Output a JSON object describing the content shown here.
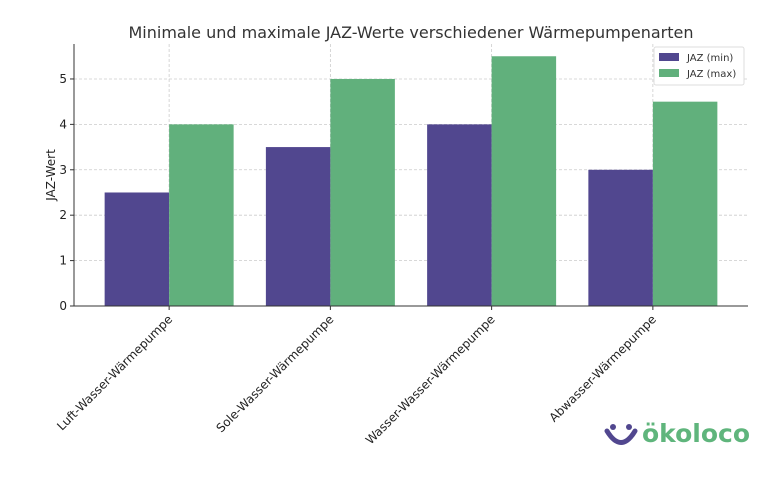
{
  "chart_data": {
    "type": "bar",
    "title": "Minimale und maximale JAZ-Werte verschiedener Wärmepumpenarten",
    "xlabel": "",
    "ylabel": "JAZ-Wert",
    "categories": [
      "Luft-Wasser-Wärmepumpe",
      "Sole-Wasser-Wärmepumpe",
      "Wasser-Wasser-Wärmepumpe",
      "Abwasser-Wärmepumpe"
    ],
    "series": [
      {
        "name": "JAZ (min)",
        "values": [
          2.5,
          3.5,
          4.0,
          3.0
        ],
        "color": "#51478f"
      },
      {
        "name": "JAZ (max)",
        "values": [
          4.0,
          5.0,
          5.5,
          4.5
        ],
        "color": "#61b07c"
      }
    ],
    "ylim": [
      0,
      5.77
    ],
    "yticks": [
      0,
      1,
      2,
      3,
      4,
      5
    ],
    "grid": true,
    "legend": "top-right"
  },
  "logo": {
    "text": "ökoloco",
    "color": "#5fb57c",
    "icon_color": "#51478f"
  }
}
